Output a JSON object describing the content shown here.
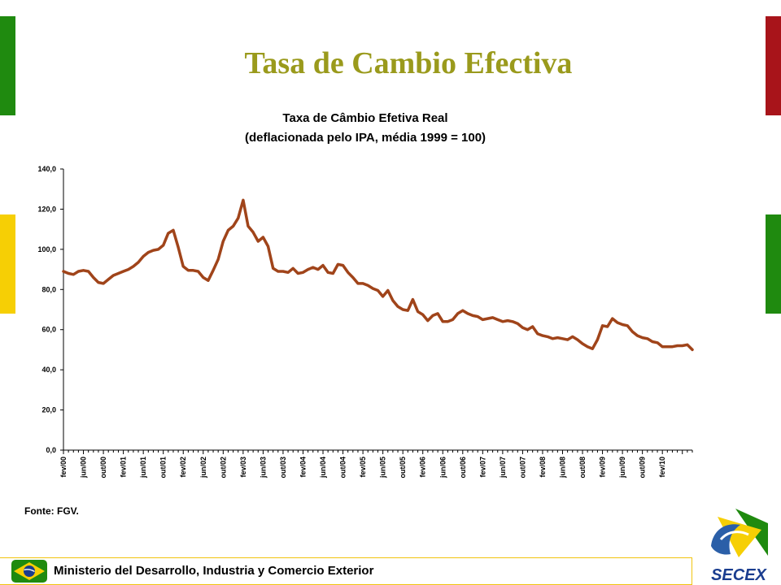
{
  "slide": {
    "title": "Tasa de Cambio Efectiva",
    "source_note": "Fonte: FGV.",
    "footer_text": "Ministerio del Desarrollo, Industria y Comercio Exterior",
    "logo_text": "SECEX"
  },
  "colors": {
    "accent_green": "#1f8a0f",
    "accent_yellow": "#f6cf05",
    "accent_red": "#a8141a",
    "title_olive": "#9a9a1c",
    "series_line": "#a0441a"
  },
  "chart_data": {
    "type": "line",
    "title": "Taxa de Câmbio Efetiva Real",
    "subtitle": "(deflacionada pelo IPA, média 1999 = 100)",
    "xlabel": "",
    "ylabel": "",
    "ylim": [
      0,
      140
    ],
    "yticks": [
      "0,0",
      "20,0",
      "40,0",
      "60,0",
      "80,0",
      "100,0",
      "120,0",
      "140,0"
    ],
    "grid": false,
    "legend": "none",
    "x_tick_labels": [
      "fev/00",
      "jun/00",
      "out/00",
      "fev/01",
      "jun/01",
      "out/01",
      "fev/02",
      "jun/02",
      "out/02",
      "fev/03",
      "jun/03",
      "out/03",
      "fev/04",
      "jun/04",
      "out/04",
      "fev/05",
      "jun/05",
      "out/05",
      "fev/06",
      "jun/06",
      "out/06",
      "fev/07",
      "jun/07",
      "out/07",
      "fev/08",
      "jun/08",
      "out/08",
      "fev/09",
      "jun/09",
      "out/09",
      "fev/10"
    ],
    "series": [
      {
        "values": [
          89,
          88,
          87.5,
          89,
          89.5,
          89,
          86,
          83.5,
          83,
          85,
          87,
          88,
          89,
          90,
          91.5,
          93.5,
          96.5,
          98.5,
          99.5,
          100,
          102,
          108,
          109.5,
          101,
          91.5,
          89.5,
          89.5,
          89,
          86,
          84.5,
          89.5,
          95,
          104,
          109.5,
          111.5,
          115.5,
          124.5,
          111.5,
          108.5,
          104,
          106,
          101.5,
          90.5,
          89,
          89,
          88.5,
          90.5,
          88,
          88.5,
          90,
          91,
          90,
          92,
          88.5,
          88,
          92.5,
          92,
          88.5,
          86,
          83,
          83,
          82,
          80.5,
          79.5,
          76.5,
          79.5,
          74.5,
          71.5,
          70,
          69.5,
          75,
          69,
          67.5,
          64.5,
          67,
          68,
          64,
          64,
          65,
          68,
          69.5,
          68,
          67,
          66.5,
          65,
          65.5,
          66,
          65,
          64,
          64.5,
          64,
          63,
          61,
          60,
          61.5,
          58,
          57,
          56.5,
          55.5,
          56,
          55.5,
          55,
          56.5,
          55,
          53,
          51.5,
          50.5,
          55,
          62,
          61.5,
          65.5,
          63.5,
          62.5,
          62,
          59,
          57,
          56,
          55.5,
          54,
          53.5,
          51.5,
          51.5,
          51.5,
          52,
          52,
          52.5,
          50
        ]
      }
    ]
  }
}
